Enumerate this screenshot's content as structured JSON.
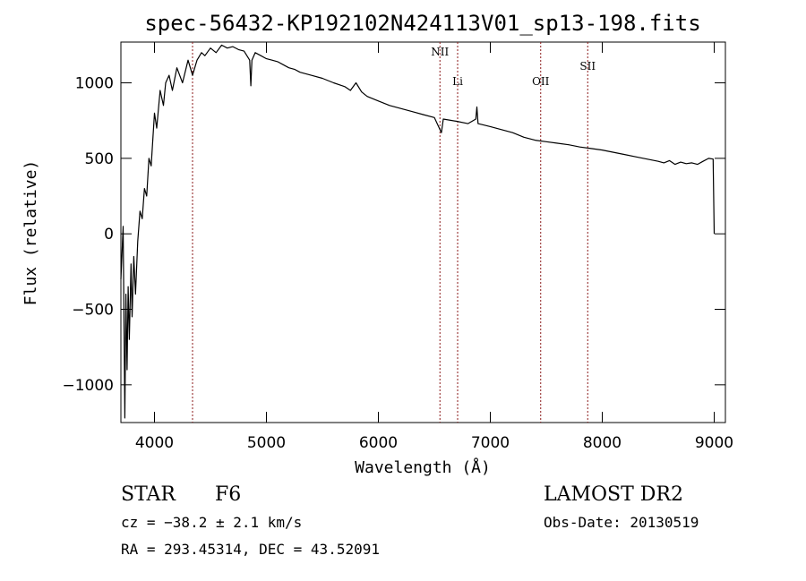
{
  "chart_data": {
    "type": "line",
    "title": "spec-56432-KP192102N424113V01_sp13-198.fits",
    "xlabel": "Wavelength (Å)",
    "ylabel": "Flux (relative)",
    "xlim": [
      3700,
      9100
    ],
    "ylim": [
      -1250,
      1270
    ],
    "xticks": [
      4000,
      5000,
      6000,
      7000,
      8000,
      9000
    ],
    "yticks": [
      -1000,
      -500,
      0,
      500,
      1000
    ],
    "line_color": "#000000",
    "marker_color": "#8b1a1a",
    "spectral_lines": [
      {
        "name": "",
        "wavelength": 4340
      },
      {
        "name": "NII",
        "wavelength": 6550
      },
      {
        "name": "Li",
        "wavelength": 6708
      },
      {
        "name": "OII",
        "wavelength": 7450
      },
      {
        "name": "SII",
        "wavelength": 7870
      }
    ],
    "series": [
      {
        "points": [
          [
            3700,
            -300
          ],
          [
            3720,
            50
          ],
          [
            3735,
            -1220
          ],
          [
            3745,
            -400
          ],
          [
            3755,
            -900
          ],
          [
            3765,
            -350
          ],
          [
            3775,
            -700
          ],
          [
            3790,
            -200
          ],
          [
            3800,
            -550
          ],
          [
            3815,
            -150
          ],
          [
            3830,
            -400
          ],
          [
            3850,
            -50
          ],
          [
            3870,
            150
          ],
          [
            3890,
            100
          ],
          [
            3910,
            300
          ],
          [
            3930,
            250
          ],
          [
            3950,
            500
          ],
          [
            3970,
            450
          ],
          [
            4000,
            800
          ],
          [
            4020,
            700
          ],
          [
            4050,
            950
          ],
          [
            4080,
            850
          ],
          [
            4100,
            1000
          ],
          [
            4130,
            1050
          ],
          [
            4160,
            950
          ],
          [
            4200,
            1100
          ],
          [
            4250,
            1000
          ],
          [
            4300,
            1150
          ],
          [
            4340,
            1050
          ],
          [
            4380,
            1150
          ],
          [
            4420,
            1200
          ],
          [
            4450,
            1180
          ],
          [
            4500,
            1230
          ],
          [
            4550,
            1200
          ],
          [
            4600,
            1250
          ],
          [
            4650,
            1230
          ],
          [
            4700,
            1240
          ],
          [
            4750,
            1220
          ],
          [
            4800,
            1210
          ],
          [
            4850,
            1150
          ],
          [
            4861,
            980
          ],
          [
            4870,
            1150
          ],
          [
            4900,
            1200
          ],
          [
            4950,
            1180
          ],
          [
            5000,
            1160
          ],
          [
            5050,
            1150
          ],
          [
            5100,
            1140
          ],
          [
            5150,
            1120
          ],
          [
            5200,
            1100
          ],
          [
            5250,
            1090
          ],
          [
            5300,
            1070
          ],
          [
            5400,
            1050
          ],
          [
            5500,
            1030
          ],
          [
            5600,
            1000
          ],
          [
            5700,
            975
          ],
          [
            5750,
            950
          ],
          [
            5800,
            1000
          ],
          [
            5850,
            940
          ],
          [
            5900,
            910
          ],
          [
            6000,
            880
          ],
          [
            6100,
            850
          ],
          [
            6200,
            830
          ],
          [
            6300,
            810
          ],
          [
            6400,
            790
          ],
          [
            6500,
            770
          ],
          [
            6563,
            670
          ],
          [
            6580,
            760
          ],
          [
            6700,
            745
          ],
          [
            6800,
            730
          ],
          [
            6870,
            760
          ],
          [
            6880,
            840
          ],
          [
            6890,
            730
          ],
          [
            7000,
            710
          ],
          [
            7100,
            690
          ],
          [
            7200,
            670
          ],
          [
            7300,
            640
          ],
          [
            7400,
            620
          ],
          [
            7500,
            610
          ],
          [
            7600,
            600
          ],
          [
            7700,
            590
          ],
          [
            7800,
            575
          ],
          [
            7900,
            565
          ],
          [
            8000,
            555
          ],
          [
            8100,
            540
          ],
          [
            8200,
            525
          ],
          [
            8300,
            510
          ],
          [
            8400,
            495
          ],
          [
            8500,
            480
          ],
          [
            8550,
            470
          ],
          [
            8600,
            485
          ],
          [
            8650,
            460
          ],
          [
            8700,
            475
          ],
          [
            8750,
            465
          ],
          [
            8800,
            470
          ],
          [
            8850,
            460
          ],
          [
            8900,
            480
          ],
          [
            8950,
            500
          ],
          [
            8990,
            495
          ],
          [
            9000,
            0
          ]
        ]
      }
    ]
  },
  "info": {
    "class_label": "STAR",
    "subclass": "F6",
    "survey": "LAMOST DR2",
    "cz": "cz = −38.2 ± 2.1 km/s",
    "obs_date": "Obs-Date: 20130519",
    "coords": "RA = 293.45314, DEC =  43.52091"
  }
}
